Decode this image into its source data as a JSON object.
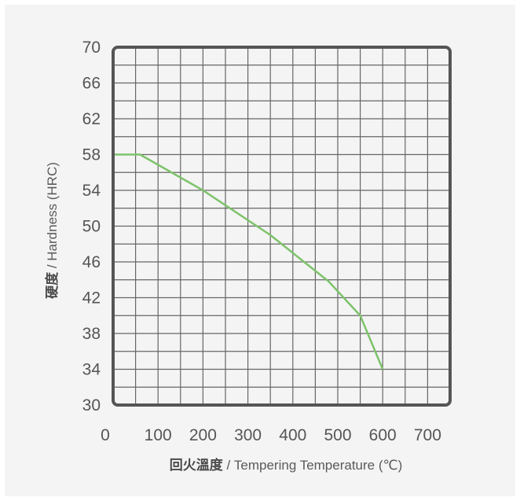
{
  "chart_data": {
    "type": "line",
    "xlabel_cn": "回火溫度",
    "xlabel_en": " / Tempering Temperature (℃)",
    "ylabel_cn": "硬度",
    "ylabel_en": " / Hardness (HRC)",
    "xlim": [
      0,
      750
    ],
    "ylim": [
      30,
      70
    ],
    "x_ticks": [
      0,
      100,
      200,
      300,
      400,
      500,
      600,
      700
    ],
    "y_ticks": [
      30,
      34,
      38,
      42,
      46,
      50,
      54,
      58,
      62,
      66,
      70
    ],
    "grid": true,
    "series": [
      {
        "color": "#7dc36a",
        "points": [
          [
            0,
            58
          ],
          [
            60,
            58
          ],
          [
            200,
            54
          ],
          [
            350,
            49
          ],
          [
            480,
            43.8
          ],
          [
            550,
            40
          ],
          [
            600,
            34
          ]
        ]
      }
    ]
  }
}
